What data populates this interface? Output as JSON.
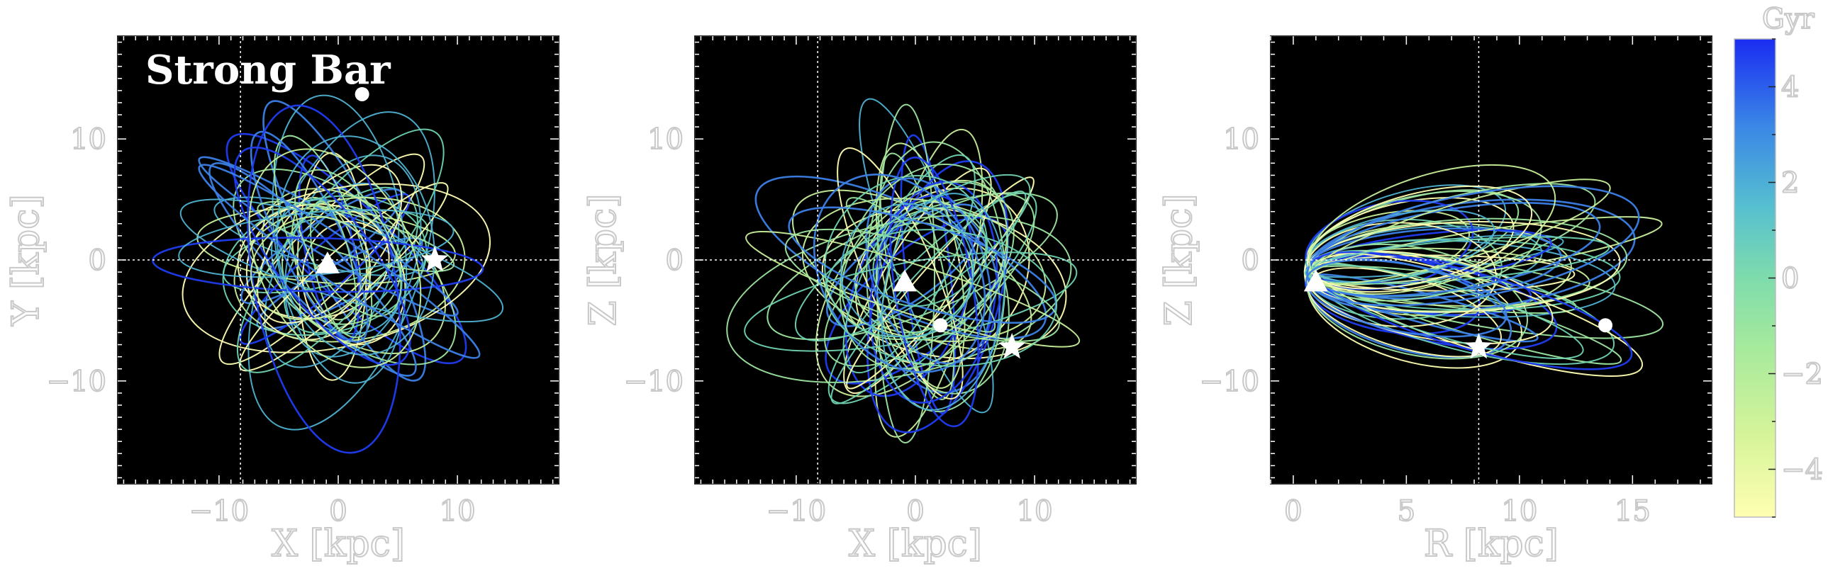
{
  "chart_data": [
    {
      "type": "line",
      "panel": "X-Y projection",
      "annotation": "Strong Bar",
      "xlabel": "X [kpc]",
      "ylabel": "Y [kpc]",
      "xlim": [
        -18.5,
        18.5
      ],
      "ylim": [
        -18.5,
        18.5
      ],
      "xticks": [
        -10,
        0,
        10
      ],
      "xtick_labels": [
        "−10",
        "0",
        "10"
      ],
      "yticks": [
        -10,
        0,
        10
      ],
      "ytick_labels": [
        "−10",
        "0",
        "10"
      ],
      "reference_lines": {
        "x": -8.2,
        "y": 0
      },
      "markers": {
        "star": [
          8.1,
          0.0
        ],
        "triangle": [
          -0.9,
          -0.3
        ],
        "circle": [
          2.0,
          13.7
        ]
      },
      "background": "#000000"
    },
    {
      "type": "line",
      "panel": "X-Z projection",
      "xlabel": "X [kpc]",
      "ylabel": "Z [kpc]",
      "xlim": [
        -18.5,
        18.5
      ],
      "ylim": [
        -18.5,
        18.5
      ],
      "xticks": [
        -10,
        0,
        10
      ],
      "xtick_labels": [
        "−10",
        "0",
        "10"
      ],
      "yticks": [
        -10,
        0,
        10
      ],
      "ytick_labels": [
        "−10",
        "0",
        "10"
      ],
      "reference_lines": {
        "x": -8.2,
        "y": 0
      },
      "markers": {
        "star": [
          8.1,
          -7.2
        ],
        "triangle": [
          -0.9,
          -1.8
        ],
        "circle": [
          2.1,
          -5.4
        ]
      },
      "background": "#000000"
    },
    {
      "type": "line",
      "panel": "R-Z projection",
      "xlabel": "R [kpc]",
      "ylabel": "Z [kpc]",
      "xlim": [
        -1,
        18.5
      ],
      "ylim": [
        -18.5,
        18.5
      ],
      "xticks": [
        0,
        5,
        10,
        15
      ],
      "xtick_labels": [
        "0",
        "5",
        "10",
        "15"
      ],
      "yticks": [
        -10,
        0,
        10
      ],
      "ytick_labels": [
        "−10",
        "0",
        "10"
      ],
      "reference_lines": {
        "x": 8.2,
        "y": 0
      },
      "markers": {
        "star": [
          8.2,
          -7.2
        ],
        "triangle": [
          1.0,
          -1.8
        ],
        "circle": [
          13.8,
          -5.4
        ]
      },
      "background": "#000000"
    }
  ],
  "colorbar": {
    "label": "Gyr",
    "range": [
      -5,
      5
    ],
    "ticks": [
      4,
      2,
      0,
      -2,
      -4
    ],
    "tick_labels": [
      "4",
      "2",
      "0",
      "−2",
      "−4"
    ],
    "colormap": [
      "#ffffb2",
      "#c8f09a",
      "#9ee6a0",
      "#6fd3b0",
      "#4fb2d2",
      "#3b7fe6",
      "#1f3cf0"
    ]
  }
}
